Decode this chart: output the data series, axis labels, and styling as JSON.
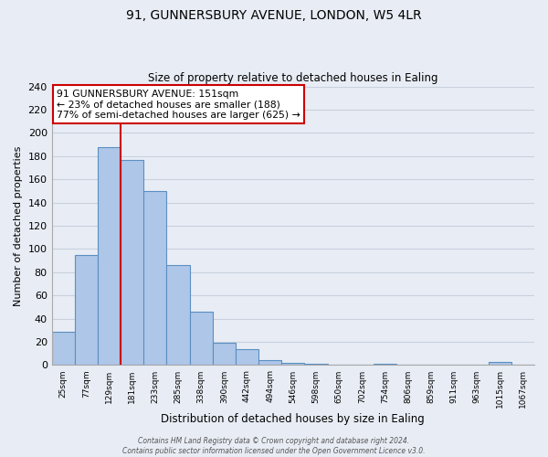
{
  "title": "91, GUNNERSBURY AVENUE, LONDON, W5 4LR",
  "subtitle": "Size of property relative to detached houses in Ealing",
  "xlabel": "Distribution of detached houses by size in Ealing",
  "ylabel": "Number of detached properties",
  "bin_labels": [
    "25sqm",
    "77sqm",
    "129sqm",
    "181sqm",
    "233sqm",
    "285sqm",
    "338sqm",
    "390sqm",
    "442sqm",
    "494sqm",
    "546sqm",
    "598sqm",
    "650sqm",
    "702sqm",
    "754sqm",
    "806sqm",
    "859sqm",
    "911sqm",
    "963sqm",
    "1015sqm",
    "1067sqm"
  ],
  "bar_heights": [
    29,
    95,
    188,
    177,
    150,
    86,
    46,
    19,
    14,
    4,
    2,
    1,
    0,
    0,
    1,
    0,
    0,
    0,
    0,
    3,
    0
  ],
  "bar_color": "#aec6e8",
  "bar_edge_color": "#5a8fc2",
  "bar_edge_width": 0.8,
  "marker_color": "#cc0000",
  "annotation_text": "91 GUNNERSBURY AVENUE: 151sqm\n← 23% of detached houses are smaller (188)\n77% of semi-detached houses are larger (625) →",
  "annotation_box_color": "#ffffff",
  "annotation_box_edge_color": "#cc0000",
  "ylim": [
    0,
    240
  ],
  "yticks": [
    0,
    20,
    40,
    60,
    80,
    100,
    120,
    140,
    160,
    180,
    200,
    220,
    240
  ],
  "grid_color": "#c8d0de",
  "background_color": "#e8edf5",
  "footer_line1": "Contains HM Land Registry data © Crown copyright and database right 2024.",
  "footer_line2": "Contains public sector information licensed under the Open Government Licence v3.0."
}
